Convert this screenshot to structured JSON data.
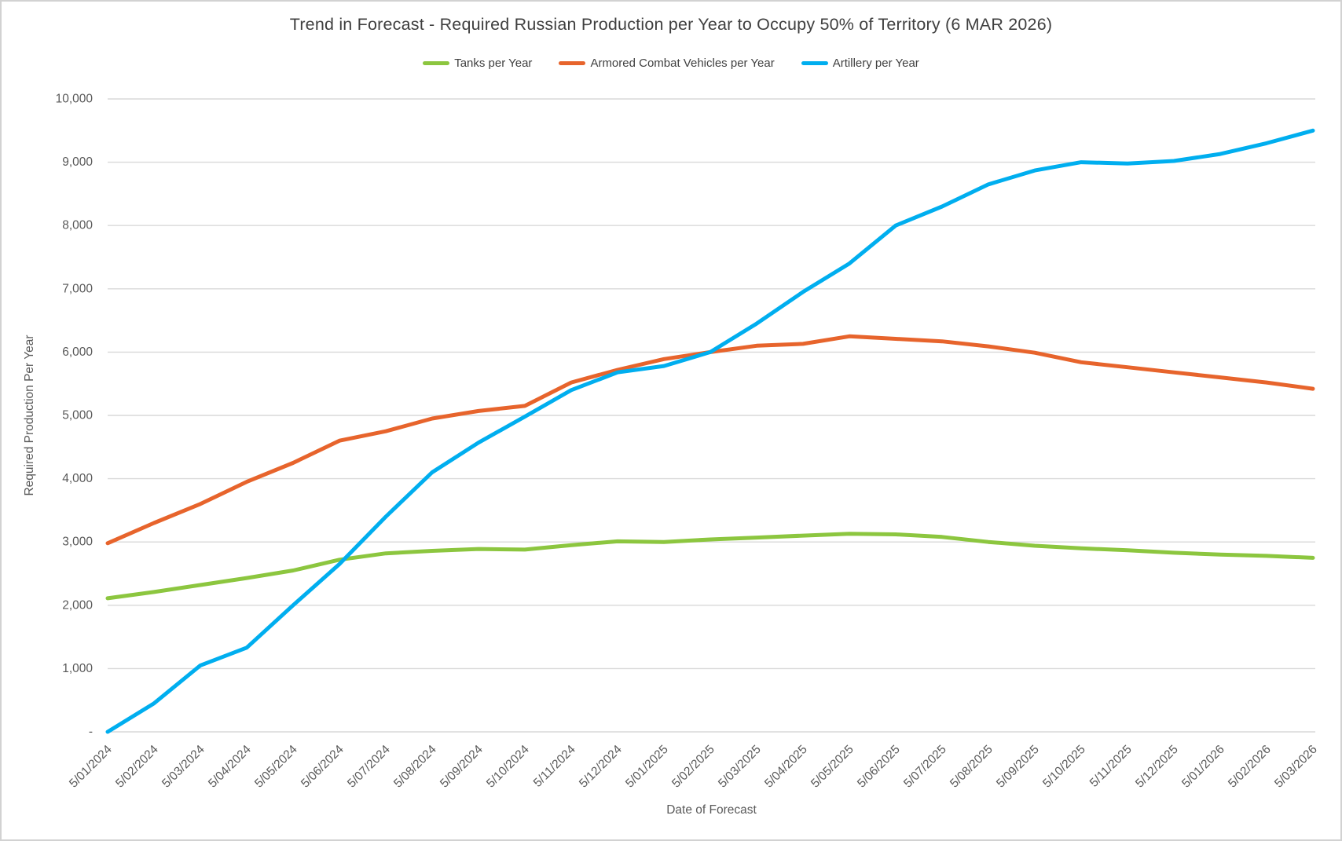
{
  "title": "Trend in Forecast - Required Russian Production per Year to Occupy 50% of Territory (6 MAR 2026)",
  "axis": {
    "x_title": "Date of Forecast",
    "y_title": "Required Production Per Year",
    "y_tick_labels": [
      "10,000",
      "9,000",
      "8,000",
      "7,000",
      "6,000",
      "5,000",
      "4,000",
      "3,000",
      "2,000",
      "1,000",
      "-"
    ]
  },
  "colors": {
    "grid": "#d9d9d9",
    "axis_text": "#595959",
    "title_text": "#3f3f3f"
  },
  "chart_data": {
    "type": "line",
    "title": "Trend in Forecast - Required Russian Production per Year to Occupy 50% of Territory (6 MAR 2026)",
    "xlabel": "Date of Forecast",
    "ylabel": "Required Production Per Year",
    "ylim": [
      0,
      10000
    ],
    "y_tick_step": 1000,
    "grid": "horizontal",
    "legend_position": "top",
    "categories": [
      "5/01/2024",
      "5/02/2024",
      "5/03/2024",
      "5/04/2024",
      "5/05/2024",
      "5/06/2024",
      "5/07/2024",
      "5/08/2024",
      "5/09/2024",
      "5/10/2024",
      "5/11/2024",
      "5/12/2024",
      "5/01/2025",
      "5/02/2025",
      "5/03/2025",
      "5/04/2025",
      "5/05/2025",
      "5/06/2025",
      "5/07/2025",
      "5/08/2025",
      "5/09/2025",
      "5/10/2025",
      "5/11/2025",
      "5/12/2025",
      "5/01/2026",
      "5/02/2026",
      "5/03/2026"
    ],
    "series": [
      {
        "name": "Tanks per Year",
        "color": "#8cc63f",
        "values": [
          2110,
          2210,
          2320,
          2430,
          2550,
          2720,
          2820,
          2860,
          2890,
          2880,
          2950,
          3010,
          3000,
          3040,
          3070,
          3100,
          3130,
          3120,
          3080,
          3000,
          2940,
          2900,
          2870,
          2830,
          2800,
          2780,
          2750
        ]
      },
      {
        "name": "Armored Combat Vehicles per Year",
        "color": "#e7642c",
        "values": [
          2980,
          3300,
          3600,
          3950,
          4250,
          4600,
          4750,
          4950,
          5070,
          5150,
          5520,
          5720,
          5890,
          6000,
          6100,
          6130,
          6250,
          6210,
          6170,
          6090,
          5990,
          5840,
          5760,
          5680,
          5600,
          5520,
          5420
        ]
      },
      {
        "name": "Artillery per Year",
        "color": "#00aeef",
        "values": [
          0,
          450,
          1050,
          1330,
          2000,
          2650,
          3400,
          4100,
          4570,
          4980,
          5400,
          5680,
          5780,
          6000,
          6450,
          6950,
          7400,
          8000,
          8300,
          8650,
          8870,
          9000,
          8980,
          9020,
          9130,
          9300,
          9500
        ]
      }
    ]
  }
}
